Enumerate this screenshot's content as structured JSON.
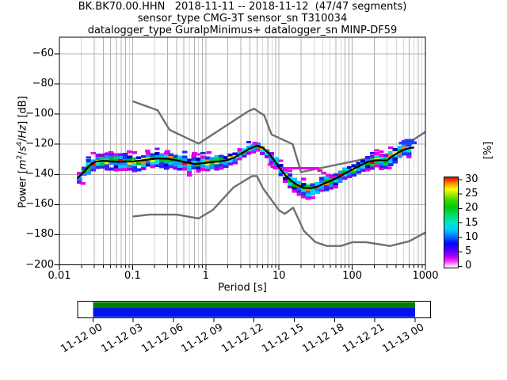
{
  "title": {
    "line1": "BK.BK70.00.HHN   2018-11-11 -- 2018-11-12  (47/47 segments)",
    "line2": "sensor_type CMG-3T sensor_sn T310034",
    "line3": "datalogger_type GuralpMinimus+ datalogger_sn MINP-DF59"
  },
  "axes": {
    "x": {
      "label": "Period [s]",
      "scale": "log",
      "tick_labels": [
        "0.01",
        "0.1",
        "1",
        "10",
        "100",
        "1000"
      ],
      "tick_values": [
        0.01,
        0.1,
        1,
        10,
        100,
        1000
      ]
    },
    "y": {
      "label_parts": {
        "pre": "Power [",
        "m": "m",
        "sup1": "2",
        "sl1": "/",
        "s": "s",
        "sup2": "4",
        "sl2": "/",
        "hz": "Hz",
        "post": "] [dB]"
      },
      "tick_labels": [
        "−60",
        "−80",
        "−100",
        "−120",
        "−140",
        "−160",
        "−180",
        "−200"
      ],
      "tick_values": [
        -60,
        -80,
        -100,
        -120,
        -140,
        -160,
        -180,
        -200
      ]
    }
  },
  "colorbar": {
    "label": "[%]",
    "tick_labels": [
      "30",
      "25",
      "20",
      "15",
      "10",
      "5",
      "0"
    ],
    "tick_values": [
      30,
      25,
      20,
      15,
      10,
      5,
      0
    ],
    "gradient_stops": [
      [
        0,
        "#ffffff"
      ],
      [
        3,
        "#ffb3ff"
      ],
      [
        7,
        "#ff2fff"
      ],
      [
        12,
        "#b400ff"
      ],
      [
        19,
        "#5000ff"
      ],
      [
        27,
        "#0008ff"
      ],
      [
        34,
        "#0070ff"
      ],
      [
        42,
        "#00ccff"
      ],
      [
        50,
        "#00e8c0"
      ],
      [
        58,
        "#00dd66"
      ],
      [
        67,
        "#00cc00"
      ],
      [
        75,
        "#3fd800"
      ],
      [
        81,
        "#a5e800"
      ],
      [
        87,
        "#ffff00"
      ],
      [
        92,
        "#ffa500"
      ],
      [
        96,
        "#ff4f00"
      ],
      [
        100,
        "#e60000"
      ]
    ]
  },
  "timeline": {
    "labels": [
      "11-12 00",
      "11-12 03",
      "11-12 06",
      "11-12 09",
      "11-12 12",
      "11-12 15",
      "11-12 18",
      "11-12 21",
      "11-13 00"
    ],
    "top_bar_color": "#008000",
    "bottom_bar_color": "#0013e8",
    "frame_color": "#000000"
  },
  "chart_data": {
    "type": "heatmap",
    "description": "PPSD probabilistic power spectral density histogram with Peterson NHNM/NLNM reference noise model curves and black mode curve",
    "title": "BK.BK70.00.HHN 2018-11-11 -- 2018-11-12 (47/47 segments)",
    "xlabel": "Period [s]",
    "ylabel": "Power [m2/s4/Hz] [dB]",
    "x_scale": "log",
    "xlim": [
      0.01,
      1000
    ],
    "ylim": [
      -200,
      -49
    ],
    "grid": true,
    "legend": false,
    "colorbar_range_percent": [
      0,
      30
    ],
    "grid_color": "#b0b0b0",
    "model_color": "#6f6f6f",
    "mode_color": "#000000",
    "series": [
      {
        "name": "ppsd_mode_curve",
        "points": [
          [
            0.0175,
            -142.5
          ],
          [
            0.019,
            -141
          ],
          [
            0.022,
            -138
          ],
          [
            0.026,
            -134
          ],
          [
            0.031,
            -131.5
          ],
          [
            0.04,
            -131
          ],
          [
            0.05,
            -131.4
          ],
          [
            0.065,
            -131.7
          ],
          [
            0.08,
            -131.4
          ],
          [
            0.1,
            -131.5
          ],
          [
            0.13,
            -130.9
          ],
          [
            0.17,
            -130.1
          ],
          [
            0.22,
            -129.4
          ],
          [
            0.3,
            -129.6
          ],
          [
            0.4,
            -130.7
          ],
          [
            0.55,
            -132.1
          ],
          [
            0.7,
            -133.1
          ],
          [
            0.9,
            -132.6
          ],
          [
            1.2,
            -131.9
          ],
          [
            1.6,
            -131.3
          ],
          [
            2.0,
            -130.4
          ],
          [
            2.5,
            -128.6
          ],
          [
            3.2,
            -125.6
          ],
          [
            4.0,
            -122.8
          ],
          [
            5.0,
            -121.0
          ],
          [
            6.0,
            -122.3
          ],
          [
            7.0,
            -125.3
          ],
          [
            8.5,
            -130.3
          ],
          [
            10,
            -135.3
          ],
          [
            12,
            -140.3
          ],
          [
            15,
            -144.6
          ],
          [
            18,
            -147.2
          ],
          [
            22,
            -148.9
          ],
          [
            27,
            -149.2
          ],
          [
            33,
            -148.2
          ],
          [
            40,
            -146.4
          ],
          [
            50,
            -144.4
          ],
          [
            65,
            -141.9
          ],
          [
            85,
            -138.6
          ],
          [
            110,
            -135.8
          ],
          [
            135,
            -133.6
          ],
          [
            165,
            -131.6
          ],
          [
            210,
            -130.6
          ],
          [
            300,
            -130.8
          ],
          [
            345,
            -128.3
          ],
          [
            420,
            -125.7
          ],
          [
            520,
            -123.4
          ],
          [
            620,
            -122.5
          ],
          [
            700,
            -122.2
          ]
        ]
      },
      {
        "name": "peterson_nhnm",
        "points": [
          [
            0.1,
            -91.5
          ],
          [
            0.22,
            -97.4
          ],
          [
            0.32,
            -110.5
          ],
          [
            0.8,
            -119.6
          ],
          [
            3.8,
            -98.1
          ],
          [
            4.6,
            -96.5
          ],
          [
            6.3,
            -101.0
          ],
          [
            7.9,
            -113.5
          ],
          [
            15.4,
            -120.0
          ],
          [
            20,
            -138.5
          ],
          [
            354.8,
            -126.0
          ],
          [
            1000,
            -111.8
          ]
        ]
      },
      {
        "name": "peterson_nlnm",
        "points": [
          [
            0.1,
            -168.0
          ],
          [
            0.17,
            -166.7
          ],
          [
            0.4,
            -166.7
          ],
          [
            0.8,
            -169.2
          ],
          [
            1.24,
            -163.7
          ],
          [
            2.4,
            -148.6
          ],
          [
            4.3,
            -141.1
          ],
          [
            5.0,
            -141.1
          ],
          [
            6.0,
            -149.0
          ],
          [
            10,
            -163.8
          ],
          [
            12,
            -166.2
          ],
          [
            15.6,
            -162.1
          ],
          [
            21.9,
            -177.5
          ],
          [
            31.6,
            -185.0
          ],
          [
            45,
            -187.5
          ],
          [
            70,
            -187.5
          ],
          [
            101,
            -185.0
          ],
          [
            154,
            -185.0
          ],
          [
            328,
            -187.5
          ],
          [
            600,
            -184.4
          ],
          [
            1000,
            -178.5
          ]
        ]
      }
    ],
    "histogram_band": {
      "period_range": [
        0.0175,
        700
      ],
      "cell_db": 2,
      "halfwidths": [
        [
          0.0175,
          2.5,
          3
        ],
        [
          0.025,
          4.5,
          5
        ],
        [
          0.035,
          5,
          6
        ],
        [
          0.06,
          5,
          6.5
        ],
        [
          0.1,
          4.5,
          6.5
        ],
        [
          0.2,
          4.5,
          6
        ],
        [
          0.4,
          4.5,
          6
        ],
        [
          0.8,
          4.5,
          5.5
        ],
        [
          1.5,
          4.5,
          5.5
        ],
        [
          2.5,
          3.5,
          4
        ],
        [
          4,
          2.5,
          3.5
        ],
        [
          6,
          2.5,
          3.5
        ],
        [
          9,
          3.5,
          4
        ],
        [
          14,
          4,
          5.5
        ],
        [
          20,
          4,
          6.5
        ],
        [
          30,
          4,
          6.5
        ],
        [
          45,
          4,
          5.5
        ],
        [
          70,
          3.5,
          4.5
        ],
        [
          120,
          3.5,
          4.5
        ],
        [
          200,
          4,
          5
        ],
        [
          300,
          4,
          5.5
        ],
        [
          450,
          4.5,
          5.5
        ],
        [
          600,
          5,
          5.5
        ],
        [
          700,
          5,
          5.5
        ]
      ]
    },
    "outlier_cells": [
      [
        9,
        -136,
        "m"
      ],
      [
        10.4,
        -136,
        "m"
      ],
      [
        12,
        -136,
        "m"
      ],
      [
        13.9,
        -136,
        "m"
      ],
      [
        16,
        -136,
        "m"
      ],
      [
        18.5,
        -136,
        "m"
      ],
      [
        21.3,
        -136,
        "m"
      ],
      [
        24.6,
        -136,
        "m"
      ],
      [
        28.4,
        -136,
        "m"
      ],
      [
        32.8,
        -136,
        "m"
      ],
      [
        36,
        -137.5,
        "m"
      ],
      [
        41,
        -139,
        "m"
      ],
      [
        47,
        -140.5,
        "m"
      ],
      [
        54,
        -142,
        "m"
      ],
      [
        7.6,
        -133.5,
        "m"
      ],
      [
        8.3,
        -134.8,
        "m"
      ],
      [
        0.05,
        -125.5,
        "m"
      ],
      [
        0.09,
        -125,
        "m"
      ],
      [
        0.16,
        -124.5,
        "m"
      ],
      [
        0.3,
        -124.8,
        "m"
      ],
      [
        0.7,
        -126,
        "m"
      ],
      [
        1.1,
        -125.5,
        "m"
      ],
      [
        4.7,
        -119.3,
        "m"
      ],
      [
        25,
        -156,
        "m"
      ],
      [
        29,
        -155.5,
        "m"
      ],
      [
        0.021,
        -146,
        "m"
      ],
      [
        0.6,
        -140.5,
        "m"
      ],
      [
        250,
        -136.5,
        "m"
      ],
      [
        320,
        -135.8,
        "m"
      ],
      [
        470,
        -119.3,
        "b"
      ],
      [
        543,
        -119.3,
        "b"
      ],
      [
        627,
        -119.3,
        "b"
      ],
      [
        700,
        -119.0,
        "b"
      ],
      [
        560,
        -117.3,
        "b"
      ],
      [
        647,
        -117.3,
        "b"
      ],
      [
        590,
        -121,
        "b"
      ]
    ],
    "palettes": {
      "core_tight": [
        [
          "#e60000",
          0.4
        ],
        [
          "#ff8000",
          0.25
        ],
        [
          "#ffe800",
          0.2
        ],
        [
          "#00b800",
          0.15
        ]
      ],
      "core_wide": [
        [
          "#00bb00",
          0.4
        ],
        [
          "#ffee00",
          0.2
        ],
        [
          "#00e0b0",
          0.15
        ],
        [
          "#ff8000",
          0.15
        ],
        [
          "#e60000",
          0.1
        ]
      ],
      "mid": [
        [
          "#00cc44",
          0.2
        ],
        [
          "#00dddd",
          0.3
        ],
        [
          "#1e78ff",
          0.3
        ],
        [
          "#00aaff",
          0.2
        ]
      ],
      "outer": [
        [
          "#2233ee",
          0.4
        ],
        [
          "#00ccff",
          0.2
        ],
        [
          "#0000cc",
          0.25
        ],
        [
          "#1e90ff",
          0.15
        ]
      ],
      "edge": [
        [
          "#e000e0",
          0.45
        ],
        [
          "#8800ff",
          0.3
        ],
        [
          "#2222ff",
          0.25
        ]
      ],
      "outlier_m": "#e800e8",
      "outlier_b": "#2040ff"
    }
  }
}
